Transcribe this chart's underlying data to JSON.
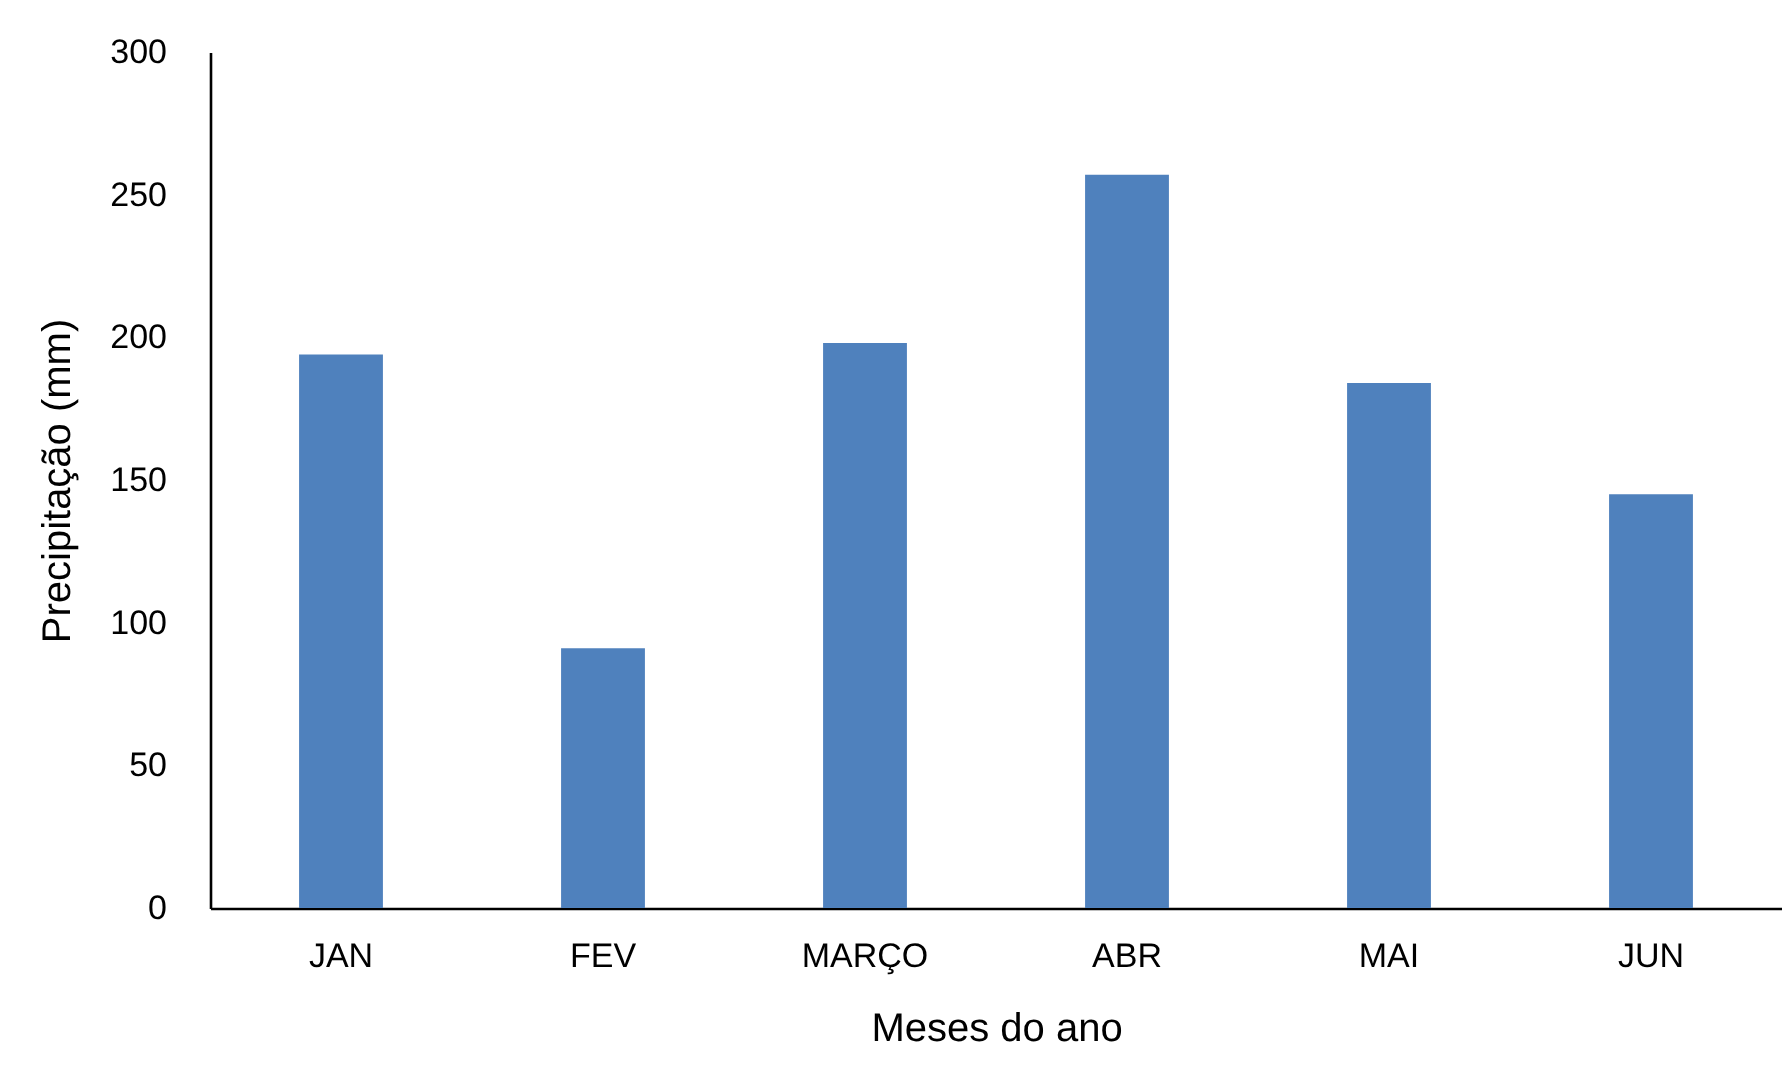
{
  "chart_data": {
    "type": "bar",
    "xlabel": "Meses do ano",
    "ylabel": "Precipitação (mm)",
    "categories": [
      "JAN",
      "FEV",
      "MARÇO",
      "ABR",
      "MAI",
      "JUN"
    ],
    "values": [
      194,
      91,
      198,
      257,
      184,
      145
    ],
    "color": "#4f81bd",
    "ylim": [
      0,
      300
    ],
    "yticks": [
      0,
      50,
      100,
      150,
      200,
      250,
      300
    ]
  }
}
